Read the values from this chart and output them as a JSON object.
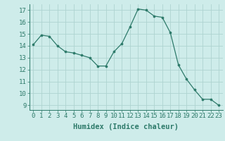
{
  "x": [
    0,
    1,
    2,
    3,
    4,
    5,
    6,
    7,
    8,
    9,
    10,
    11,
    12,
    13,
    14,
    15,
    16,
    17,
    18,
    19,
    20,
    21,
    22,
    23
  ],
  "y": [
    14.1,
    14.9,
    14.8,
    14.0,
    13.5,
    13.4,
    13.2,
    13.0,
    12.3,
    12.3,
    13.5,
    14.2,
    15.6,
    17.1,
    17.0,
    16.5,
    16.4,
    15.1,
    12.4,
    11.2,
    10.3,
    9.5,
    9.5,
    9.0
  ],
  "line_color": "#2d7a6a",
  "marker": "o",
  "marker_size": 2.2,
  "bg_color": "#ceecea",
  "grid_color": "#aed4d0",
  "xlabel": "Humidex (Indice chaleur)",
  "xlim": [
    -0.5,
    23.5
  ],
  "ylim": [
    8.6,
    17.5
  ],
  "yticks": [
    9,
    10,
    11,
    12,
    13,
    14,
    15,
    16,
    17
  ],
  "xticks": [
    0,
    1,
    2,
    3,
    4,
    5,
    6,
    7,
    8,
    9,
    10,
    11,
    12,
    13,
    14,
    15,
    16,
    17,
    18,
    19,
    20,
    21,
    22,
    23
  ],
  "tick_color": "#2d7a6a",
  "label_color": "#2d7a6a",
  "font_size": 6.5,
  "xlabel_fontsize": 7.5
}
